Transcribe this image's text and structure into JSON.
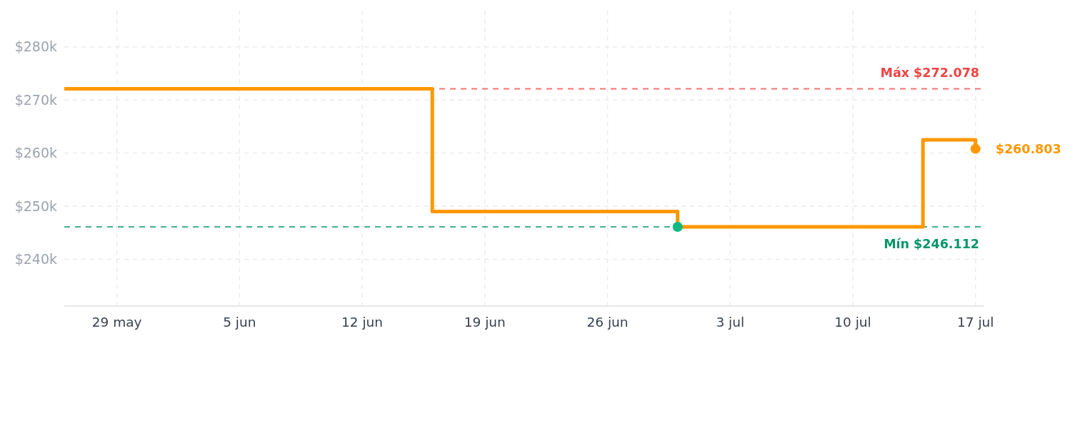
{
  "chart_data": {
    "type": "step",
    "xlim": [
      "--05-26",
      "--07-17T12:00"
    ],
    "xticks": [
      {
        "value": "--05-29",
        "label": "29 may"
      },
      {
        "value": "--06-05",
        "label": "5 jun"
      },
      {
        "value": "--06-12",
        "label": "12 jun"
      },
      {
        "value": "--06-19",
        "label": "19 jun"
      },
      {
        "value": "--06-26",
        "label": "26 jun"
      },
      {
        "value": "--07-03",
        "label": "3 jul"
      },
      {
        "value": "--07-10",
        "label": "10 jul"
      },
      {
        "value": "--07-17",
        "label": "17 jul"
      }
    ],
    "ylim": [
      231.2,
      286.8
    ],
    "yticks": [
      {
        "value": 240,
        "label": "$240k"
      },
      {
        "value": 250,
        "label": "$250k"
      },
      {
        "value": 260,
        "label": "$260k"
      },
      {
        "value": 270,
        "label": "$270k"
      },
      {
        "value": 280,
        "label": "$280k"
      }
    ],
    "grid": true,
    "series": [
      {
        "color": "#ff9800",
        "x": [
          "--05-26",
          "--06-16",
          "--06-30",
          "--07-14",
          "--07-17"
        ],
        "values": [
          272.078,
          249,
          246.112,
          262.5,
          260.803
        ]
      },
      {
        "type": "scatter",
        "marker": "circle",
        "x": [
          "--06-30",
          "--07-17"
        ],
        "values": [
          246.112,
          260.803
        ],
        "colors": [
          "#10b981",
          "#ff9800"
        ]
      }
    ],
    "ref_lines": [
      {
        "axis": "y",
        "value": 272.078,
        "label": "Máx $272.078",
        "color": "#ef4444",
        "line_style": "dashed"
      },
      {
        "axis": "y",
        "value": 246.112,
        "label": "Mín $246.112",
        "color": "#059669",
        "line_style": "dashed"
      }
    ],
    "annotations": [
      {
        "text": "$260.803",
        "x": "--07-17",
        "y": 260.803
      }
    ]
  }
}
